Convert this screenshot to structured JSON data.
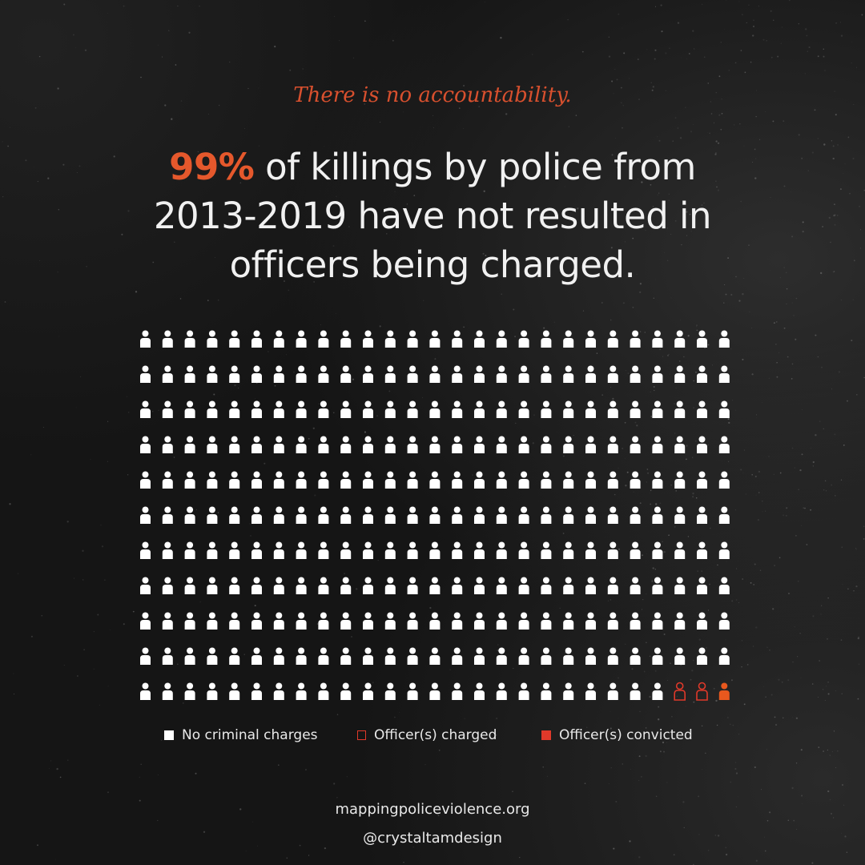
{
  "tagline": "There is no accountability.",
  "headline": {
    "highlight": "99%",
    "rest_line1": " of killings by police from",
    "line2": "2013-2019 have not resulted in",
    "line3": "officers being charged."
  },
  "colors": {
    "background": "#151515",
    "accent": "#e5582c",
    "figure_white": "#ffffff",
    "figure_charged": "#e0392a",
    "figure_convicted": "#e8581e"
  },
  "chart_data": {
    "type": "icon-array",
    "rows": 11,
    "columns": 27,
    "categories": [
      "No criminal charges",
      "Officer(s) charged",
      "Officer(s) convicted"
    ],
    "counts": {
      "No criminal charges": 294,
      "Officer(s) charged": 2,
      "Officer(s) convicted": 1
    }
  },
  "legend": {
    "items": [
      {
        "label": "No criminal charges",
        "style": "filled-white"
      },
      {
        "label": "Officer(s) charged",
        "style": "outline-red"
      },
      {
        "label": "Officer(s) convicted",
        "style": "filled-red"
      }
    ]
  },
  "footer": {
    "source": "mappingpoliceviolence.org",
    "handle": "@crystaltamdesign"
  }
}
